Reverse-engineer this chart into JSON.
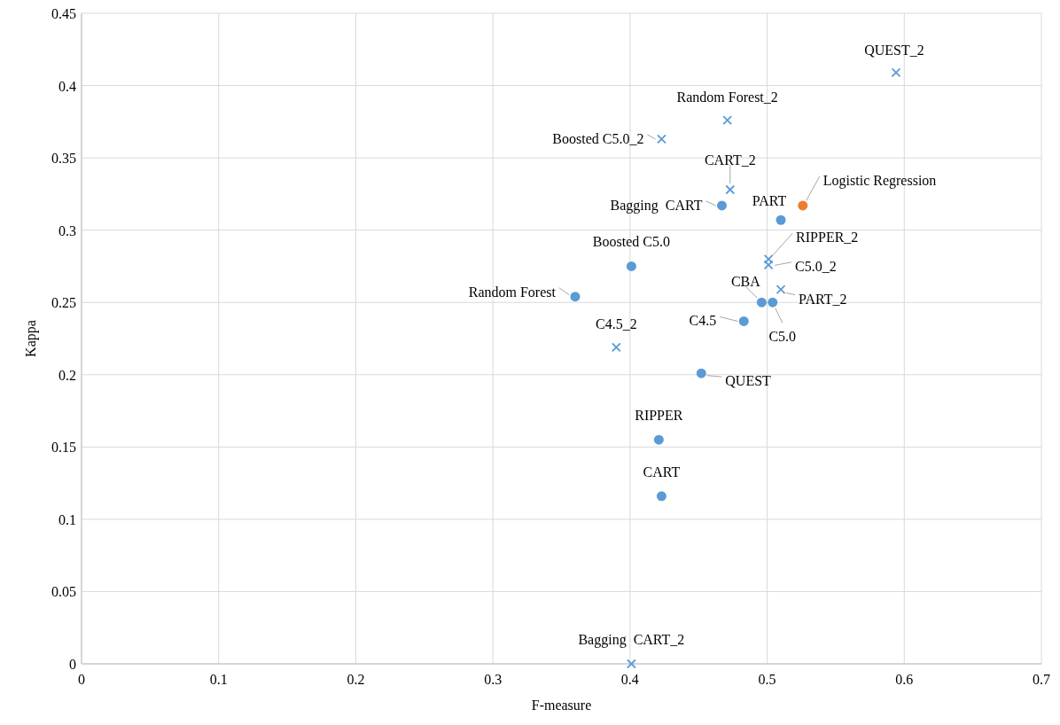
{
  "chart_data": {
    "type": "scatter",
    "xlabel": "F-measure",
    "ylabel": "Kappa",
    "xlim": [
      0,
      0.7
    ],
    "xticks": [
      0,
      0.1,
      0.2,
      0.3,
      0.4,
      0.5,
      0.6,
      0.7
    ],
    "ylim": [
      0,
      0.45
    ],
    "yticks": [
      0,
      0.05,
      0.1,
      0.15,
      0.2,
      0.25,
      0.3,
      0.35,
      0.4,
      0.45
    ],
    "grid": true,
    "series": [
      {
        "color": "#5b9bd5",
        "marker": "circle",
        "x": [
          0.467,
          0.51,
          0.401,
          0.496,
          0.504,
          0.36,
          0.483,
          0.452,
          0.421,
          0.423
        ],
        "values": [
          0.317,
          0.307,
          0.275,
          0.25,
          0.25,
          0.254,
          0.237,
          0.201,
          0.155,
          0.116
        ]
      },
      {
        "color": "#5b9bd5",
        "marker": "cross",
        "x": [
          0.594,
          0.471,
          0.423,
          0.473,
          0.501,
          0.501,
          0.51,
          0.39,
          0.401
        ],
        "values": [
          0.409,
          0.376,
          0.363,
          0.328,
          0.28,
          0.276,
          0.259,
          0.219,
          0
        ]
      },
      {
        "color": "#ed7d31",
        "marker": "circle",
        "x": [
          0.526
        ],
        "values": [
          0.317
        ]
      }
    ],
    "annotations": [
      {
        "text": "QUEST_2",
        "x": 0.594,
        "y": 0.409
      },
      {
        "text": "Random Forest_2",
        "x": 0.471,
        "y": 0.376
      },
      {
        "text": "Boosted C5.0_2",
        "x": 0.423,
        "y": 0.363
      },
      {
        "text": "CART_2",
        "x": 0.473,
        "y": 0.328
      },
      {
        "text": "Bagging  CART",
        "x": 0.467,
        "y": 0.317
      },
      {
        "text": "PART",
        "x": 0.51,
        "y": 0.307
      },
      {
        "text": "Logistic Regression",
        "x": 0.526,
        "y": 0.317
      },
      {
        "text": "RIPPER_2",
        "x": 0.501,
        "y": 0.28
      },
      {
        "text": "C5.0_2",
        "x": 0.501,
        "y": 0.276
      },
      {
        "text": "Boosted C5.0",
        "x": 0.401,
        "y": 0.275
      },
      {
        "text": "PART_2",
        "x": 0.51,
        "y": 0.259
      },
      {
        "text": "CBA",
        "x": 0.496,
        "y": 0.25
      },
      {
        "text": "C5.0",
        "x": 0.504,
        "y": 0.25
      },
      {
        "text": "Random Forest",
        "x": 0.36,
        "y": 0.254
      },
      {
        "text": "C4.5",
        "x": 0.483,
        "y": 0.237
      },
      {
        "text": "C4.5_2",
        "x": 0.39,
        "y": 0.219
      },
      {
        "text": "QUEST",
        "x": 0.452,
        "y": 0.201
      },
      {
        "text": "RIPPER",
        "x": 0.421,
        "y": 0.155
      },
      {
        "text": "CART",
        "x": 0.423,
        "y": 0.116
      },
      {
        "text": "Bagging  CART_2",
        "x": 0.401,
        "y": 0
      }
    ]
  }
}
